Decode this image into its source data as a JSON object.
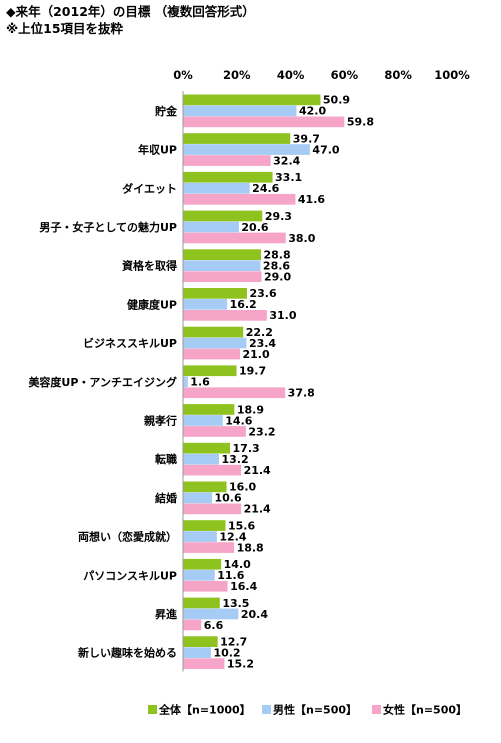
{
  "header": {
    "title": "◆来年（2012年）の目標 （複数回答形式）",
    "note": "※上位15項目を抜粋"
  },
  "colors": {
    "all": "#8dc21f",
    "male": "#a6ccf6",
    "female": "#f7a4c9"
  },
  "chart_data": {
    "type": "bar",
    "orientation": "horizontal",
    "x_range": [
      0,
      100
    ],
    "x_ticks": [
      "0%",
      "20%",
      "40%",
      "60%",
      "80%",
      "100%"
    ],
    "grid": false,
    "legend_position": "bottom",
    "categories": [
      "貯金",
      "年収UP",
      "ダイエット",
      "男子・女子としての魅力UP",
      "資格を取得",
      "健康度UP",
      "ビジネススキルUP",
      "美容度UP・アンチエイジング",
      "親孝行",
      "転職",
      "結婚",
      "両想い（恋愛成就）",
      "パソコンスキルUP",
      "昇進",
      "新しい趣味を始める"
    ],
    "series": [
      {
        "name": "全体【n=1000】",
        "key": "all",
        "values": [
          50.9,
          39.7,
          33.1,
          29.3,
          28.8,
          23.6,
          22.2,
          19.7,
          18.9,
          17.3,
          16.0,
          15.6,
          14.0,
          13.5,
          12.7
        ]
      },
      {
        "name": "男性【n=500】",
        "key": "male",
        "values": [
          42.0,
          47.0,
          24.6,
          20.6,
          28.6,
          16.2,
          23.4,
          1.6,
          14.6,
          13.2,
          10.6,
          12.4,
          11.6,
          20.4,
          10.2
        ]
      },
      {
        "name": "女性【n=500】",
        "key": "female",
        "values": [
          59.8,
          32.4,
          41.6,
          38.0,
          29.0,
          31.0,
          21.0,
          37.8,
          23.2,
          21.4,
          21.4,
          18.8,
          16.4,
          6.6,
          15.2
        ]
      }
    ]
  }
}
